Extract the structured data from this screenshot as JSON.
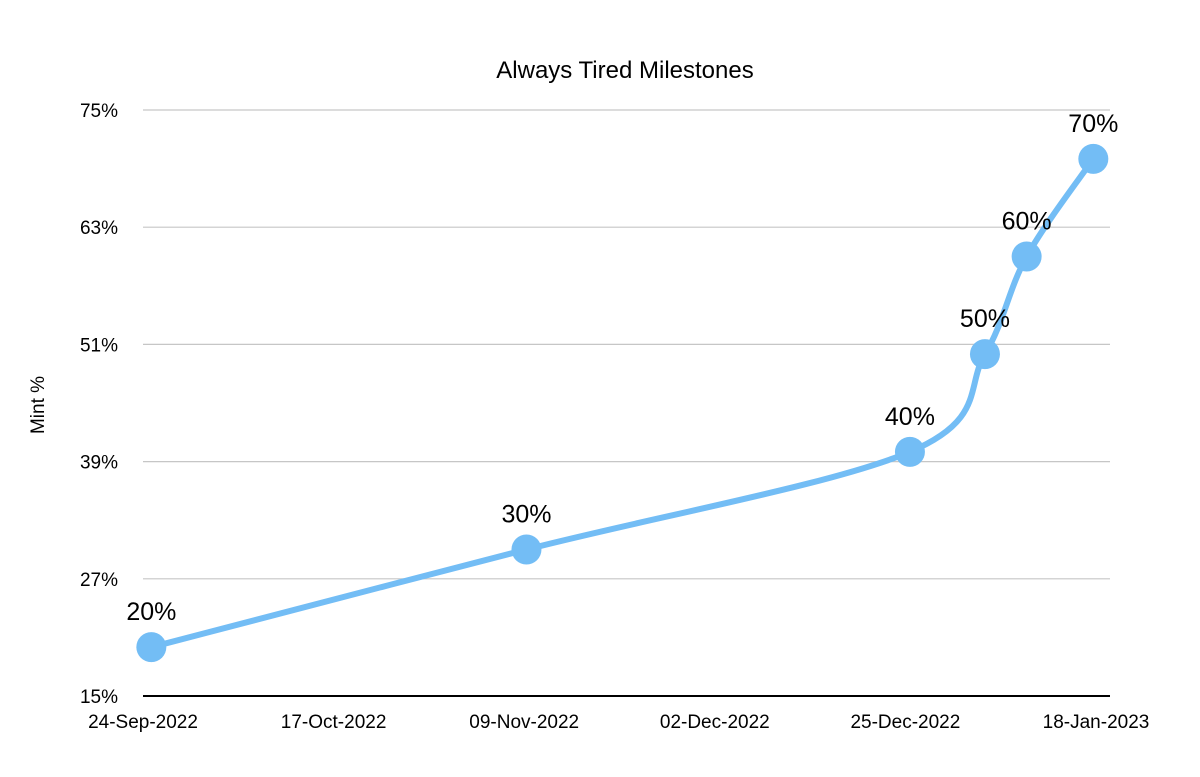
{
  "chart_data": {
    "type": "line",
    "title": "Always Tired Milestones",
    "xlabel": "",
    "ylabel": "Mint %",
    "y_ticks": [
      "75%",
      "63%",
      "51%",
      "39%",
      "27%",
      "15%"
    ],
    "ylim": [
      15,
      75
    ],
    "x_ticks": [
      "24-Sep-2022",
      "17-Oct-2022",
      "09-Nov-2022",
      "02-Dec-2022",
      "25-Dec-2022",
      "18-Jan-2023"
    ],
    "xlim": [
      "2022-09-24",
      "2023-01-18"
    ],
    "grid": "horizontal",
    "legend": "none",
    "smooth": true,
    "series": [
      {
        "color": "#73bdf5",
        "points": [
          {
            "x": "2022-09-25",
            "y": 20,
            "label": "20%"
          },
          {
            "x": "2022-11-09",
            "y": 30,
            "label": "30%"
          },
          {
            "x": "2022-12-25",
            "y": 40,
            "label": "40%"
          },
          {
            "x": "2023-01-03",
            "y": 50,
            "label": "50%"
          },
          {
            "x": "2023-01-08",
            "y": 60,
            "label": "60%"
          },
          {
            "x": "2023-01-16",
            "y": 70,
            "label": "70%"
          }
        ]
      }
    ]
  }
}
